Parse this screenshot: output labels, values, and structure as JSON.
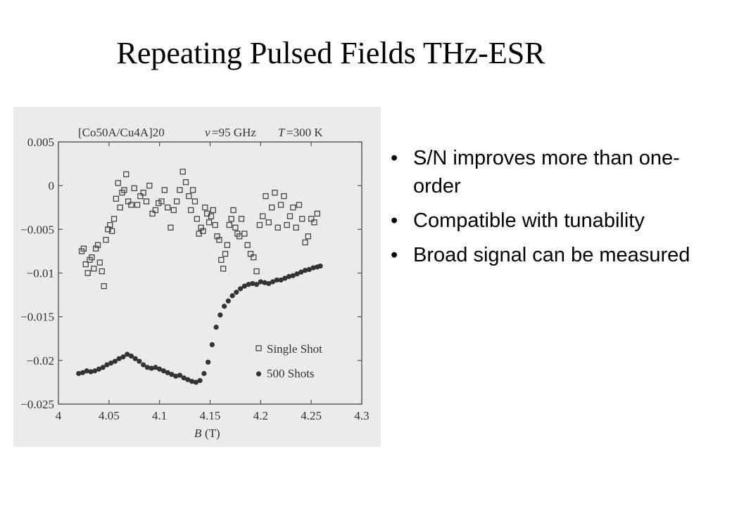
{
  "slide": {
    "title": "Repeating Pulsed Fields THz-ESR"
  },
  "bullets": [
    "S/N improves more than one-order",
    "Compatible with tunability",
    "Broad signal can be measured"
  ],
  "chart_data": {
    "type": "scatter",
    "header": {
      "sample": "[Co50A/Cu4A]20",
      "freq_symbol": "v",
      "freq_value": "=95 GHz",
      "temp_symbol": "T",
      "temp_value": "=300 K"
    },
    "xlabel_symbol": "B",
    "xlabel_unit": "(T)",
    "xlim": [
      4.0,
      4.3
    ],
    "ylim": [
      -0.025,
      0.005
    ],
    "xticks": [
      {
        "value": 4.0,
        "label": "4"
      },
      {
        "value": 4.05,
        "label": "4.05"
      },
      {
        "value": 4.1,
        "label": "4.1"
      },
      {
        "value": 4.15,
        "label": "4.15"
      },
      {
        "value": 4.2,
        "label": "4.2"
      },
      {
        "value": 4.25,
        "label": "4.25"
      },
      {
        "value": 4.3,
        "label": "4.3"
      }
    ],
    "yticks": [
      {
        "value": 0.005,
        "label": "0.005"
      },
      {
        "value": 0.0,
        "label": "0"
      },
      {
        "value": -0.005,
        "label": "−0.005"
      },
      {
        "value": -0.01,
        "label": "−0.01"
      },
      {
        "value": -0.015,
        "label": "−0.015"
      },
      {
        "value": -0.02,
        "label": "−0.02"
      },
      {
        "value": -0.025,
        "label": "−0.025"
      }
    ],
    "grid": false,
    "legend_position": "bottom-right",
    "series": [
      {
        "name": "Single Shot",
        "marker": "open-square",
        "x": [
          4.023,
          4.025,
          4.027,
          4.029,
          4.031,
          4.033,
          4.035,
          4.037,
          4.039,
          4.041,
          4.043,
          4.045,
          4.047,
          4.049,
          4.051,
          4.053,
          4.055,
          4.057,
          4.059,
          4.061,
          4.063,
          4.065,
          4.067,
          4.069,
          4.072,
          4.075,
          4.078,
          4.081,
          4.084,
          4.087,
          4.09,
          4.093,
          4.096,
          4.099,
          4.102,
          4.105,
          4.108,
          4.111,
          4.114,
          4.117,
          4.12,
          4.123,
          4.126,
          4.129,
          4.131,
          4.133,
          4.135,
          4.137,
          4.139,
          4.141,
          4.143,
          4.145,
          4.147,
          4.149,
          4.151,
          4.153,
          4.155,
          4.157,
          4.159,
          4.161,
          4.163,
          4.165,
          4.167,
          4.169,
          4.171,
          4.173,
          4.175,
          4.177,
          4.179,
          4.181,
          4.184,
          4.187,
          4.19,
          4.193,
          4.196,
          4.199,
          4.202,
          4.205,
          4.208,
          4.211,
          4.214,
          4.217,
          4.22,
          4.223,
          4.226,
          4.229,
          4.232,
          4.235,
          4.238,
          4.241,
          4.244,
          4.247,
          4.25,
          4.253,
          4.256
        ],
        "y": [
          -0.0075,
          -0.0072,
          -0.009,
          -0.01,
          -0.0085,
          -0.0082,
          -0.0095,
          -0.0072,
          -0.0068,
          -0.0088,
          -0.0098,
          -0.0115,
          -0.0062,
          -0.005,
          -0.0045,
          -0.0052,
          -0.0038,
          -0.0015,
          0.0003,
          -0.0025,
          -0.0008,
          -0.0005,
          0.0013,
          -0.0018,
          -0.0022,
          -0.0003,
          -0.0022,
          -0.0012,
          -0.0008,
          -0.0018,
          0.0,
          -0.0032,
          -0.0028,
          -0.002,
          -0.0018,
          -0.0005,
          -0.0025,
          -0.0048,
          -0.0028,
          -0.0018,
          -0.0005,
          0.0016,
          0.0004,
          -0.0012,
          -0.0028,
          -0.0005,
          -0.0018,
          -0.0038,
          -0.0055,
          -0.0048,
          -0.0052,
          -0.0025,
          -0.0032,
          -0.0042,
          -0.0035,
          -0.0028,
          -0.0045,
          -0.0058,
          -0.0062,
          -0.0085,
          -0.0095,
          -0.0078,
          -0.0068,
          -0.0045,
          -0.0038,
          -0.0028,
          -0.0048,
          -0.0055,
          -0.0058,
          -0.0038,
          -0.0055,
          -0.0068,
          -0.0078,
          -0.0082,
          -0.0098,
          -0.0045,
          -0.0035,
          -0.0012,
          -0.0042,
          -0.0025,
          -0.0008,
          -0.0048,
          -0.0022,
          -0.0012,
          -0.0045,
          -0.0035,
          -0.0025,
          -0.0048,
          -0.0022,
          -0.0038,
          -0.0065,
          -0.0058,
          -0.0038,
          -0.0042,
          -0.0032
        ]
      },
      {
        "name": "500 Shots",
        "marker": "filled-circle",
        "x": [
          4.02,
          4.024,
          4.028,
          4.032,
          4.036,
          4.04,
          4.044,
          4.048,
          4.052,
          4.056,
          4.06,
          4.064,
          4.068,
          4.072,
          4.076,
          4.08,
          4.084,
          4.088,
          4.092,
          4.096,
          4.1,
          4.104,
          4.108,
          4.112,
          4.116,
          4.12,
          4.124,
          4.128,
          4.132,
          4.136,
          4.14,
          4.144,
          4.148,
          4.152,
          4.156,
          4.16,
          4.164,
          4.168,
          4.172,
          4.176,
          4.18,
          4.184,
          4.188,
          4.192,
          4.196,
          4.2,
          4.204,
          4.208,
          4.212,
          4.216,
          4.22,
          4.224,
          4.228,
          4.232,
          4.236,
          4.24,
          4.244,
          4.248,
          4.252,
          4.256,
          4.259
        ],
        "y": [
          -0.0215,
          -0.0214,
          -0.0212,
          -0.0213,
          -0.0212,
          -0.021,
          -0.0208,
          -0.0205,
          -0.0203,
          -0.0201,
          -0.0198,
          -0.0196,
          -0.0193,
          -0.0195,
          -0.0198,
          -0.0201,
          -0.0205,
          -0.0208,
          -0.0209,
          -0.0208,
          -0.021,
          -0.0212,
          -0.0214,
          -0.0216,
          -0.0218,
          -0.0217,
          -0.022,
          -0.0222,
          -0.0224,
          -0.0225,
          -0.0223,
          -0.0215,
          -0.0202,
          -0.0182,
          -0.0162,
          -0.0148,
          -0.0138,
          -0.0132,
          -0.0126,
          -0.0122,
          -0.0118,
          -0.0115,
          -0.0113,
          -0.0112,
          -0.0113,
          -0.011,
          -0.0111,
          -0.0112,
          -0.011,
          -0.0108,
          -0.0108,
          -0.0106,
          -0.0104,
          -0.0103,
          -0.0101,
          -0.0099,
          -0.0097,
          -0.0096,
          -0.0094,
          -0.0093,
          -0.0092
        ]
      }
    ]
  }
}
